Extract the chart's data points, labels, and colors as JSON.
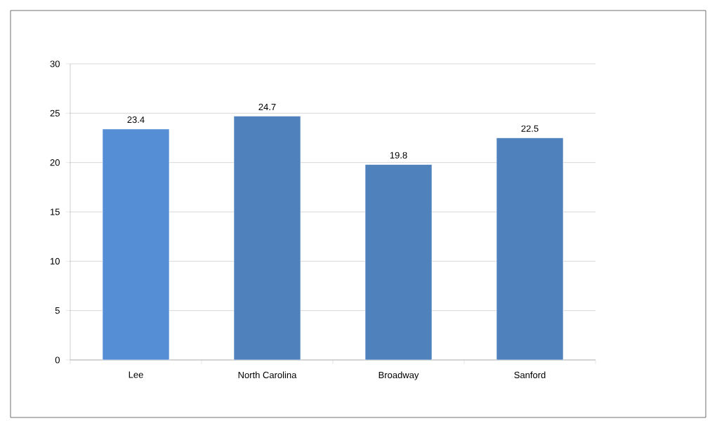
{
  "chart_data": {
    "type": "bar",
    "categories": [
      "Lee",
      "North Carolina",
      "Broadway",
      "Sanford"
    ],
    "values": [
      23.4,
      24.7,
      19.8,
      22.5
    ],
    "colors": [
      "#558ed5",
      "#4f81bd",
      "#4f81bd",
      "#4f81bd"
    ],
    "ylim": [
      0,
      30
    ],
    "yticks": [
      0,
      5,
      10,
      15,
      20,
      25,
      30
    ],
    "grid": "y",
    "data_labels": true
  }
}
